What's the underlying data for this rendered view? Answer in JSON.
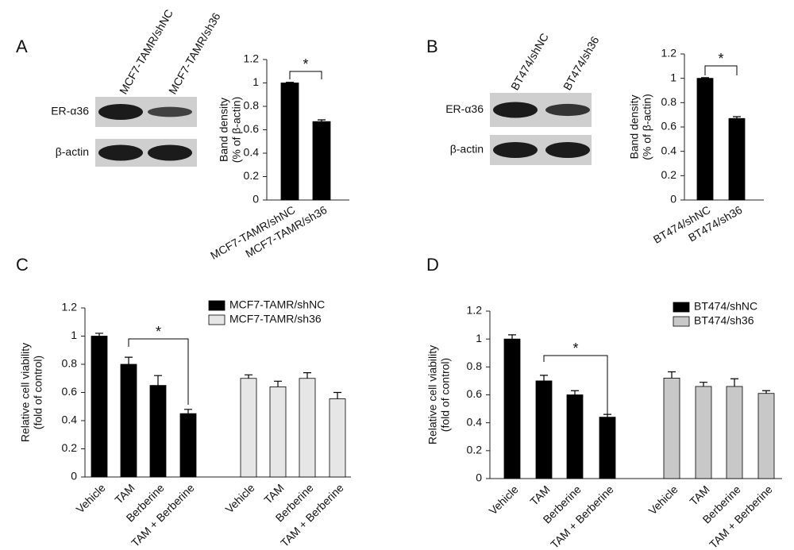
{
  "chart_data": [
    {
      "type": "bar",
      "panel": "A",
      "blot": {
        "lanes": [
          "MCF7-TAMR/shNC",
          "MCF7-TAMR/sh36"
        ],
        "rows": [
          "ER-α36",
          "β-actin"
        ]
      },
      "y_label": [
        "Band density",
        "(% of β-actin)"
      ],
      "categories": [
        "MCF7-TAMR/shNC",
        "MCF7-TAMR/sh36"
      ],
      "values": [
        1.0,
        0.67
      ],
      "errors": [
        0.005,
        0.015
      ],
      "color": "#000000",
      "ylim": [
        0,
        1.2
      ],
      "yticks": [
        0,
        0.2,
        0.4,
        0.6,
        0.8,
        1,
        1.2
      ],
      "annotation": "*"
    },
    {
      "type": "bar",
      "panel": "B",
      "blot": {
        "lanes": [
          "BT474/shNC",
          "BT474/sh36"
        ],
        "rows": [
          "ER-α36",
          "β-actin"
        ]
      },
      "y_label": [
        "Band density",
        "(% of β-actin)"
      ],
      "categories": [
        "BT474/shNC",
        "BT474/sh36"
      ],
      "values": [
        1.0,
        0.67
      ],
      "errors": [
        0.005,
        0.015
      ],
      "color": "#000000",
      "ylim": [
        0,
        1.2
      ],
      "yticks": [
        0,
        0.2,
        0.4,
        0.6,
        0.8,
        1,
        1.2
      ],
      "annotation": "*"
    },
    {
      "type": "bar",
      "panel": "C",
      "y_label": [
        "Relative cell viability",
        "(fold of control)"
      ],
      "categories": [
        "Vehicle",
        "TAM",
        "Berberine",
        "TAM + Berberine"
      ],
      "series": [
        {
          "name": "MCF7-TAMR/shNC",
          "color": "#000000",
          "values": [
            1.0,
            0.8,
            0.65,
            0.45
          ],
          "errors": [
            0.02,
            0.05,
            0.07,
            0.03
          ]
        },
        {
          "name": "MCF7-TAMR/sh36",
          "color": "#e6e6e6",
          "values": [
            0.7,
            0.64,
            0.7,
            0.555
          ],
          "errors": [
            0.025,
            0.04,
            0.04,
            0.045
          ]
        }
      ],
      "ylim": [
        0,
        1.2
      ],
      "yticks": [
        0,
        0.2,
        0.4,
        0.6,
        0.8,
        1,
        1.2
      ],
      "annotation": "*"
    },
    {
      "type": "bar",
      "panel": "D",
      "y_label": [
        "Relative cell viability",
        "(fold of control)"
      ],
      "categories": [
        "Vehicle",
        "TAM",
        "Berberine",
        "TAM + Berberine"
      ],
      "series": [
        {
          "name": "BT474/shNC",
          "color": "#000000",
          "values": [
            1.0,
            0.7,
            0.6,
            0.44
          ],
          "errors": [
            0.03,
            0.04,
            0.03,
            0.02
          ]
        },
        {
          "name": "BT474/sh36",
          "color": "#c8c8c8",
          "values": [
            0.72,
            0.66,
            0.66,
            0.61
          ],
          "errors": [
            0.045,
            0.03,
            0.055,
            0.02
          ]
        }
      ],
      "ylim": [
        0,
        1.2
      ],
      "yticks": [
        0,
        0.2,
        0.4,
        0.6,
        0.8,
        1,
        1.2
      ],
      "annotation": "*"
    }
  ]
}
